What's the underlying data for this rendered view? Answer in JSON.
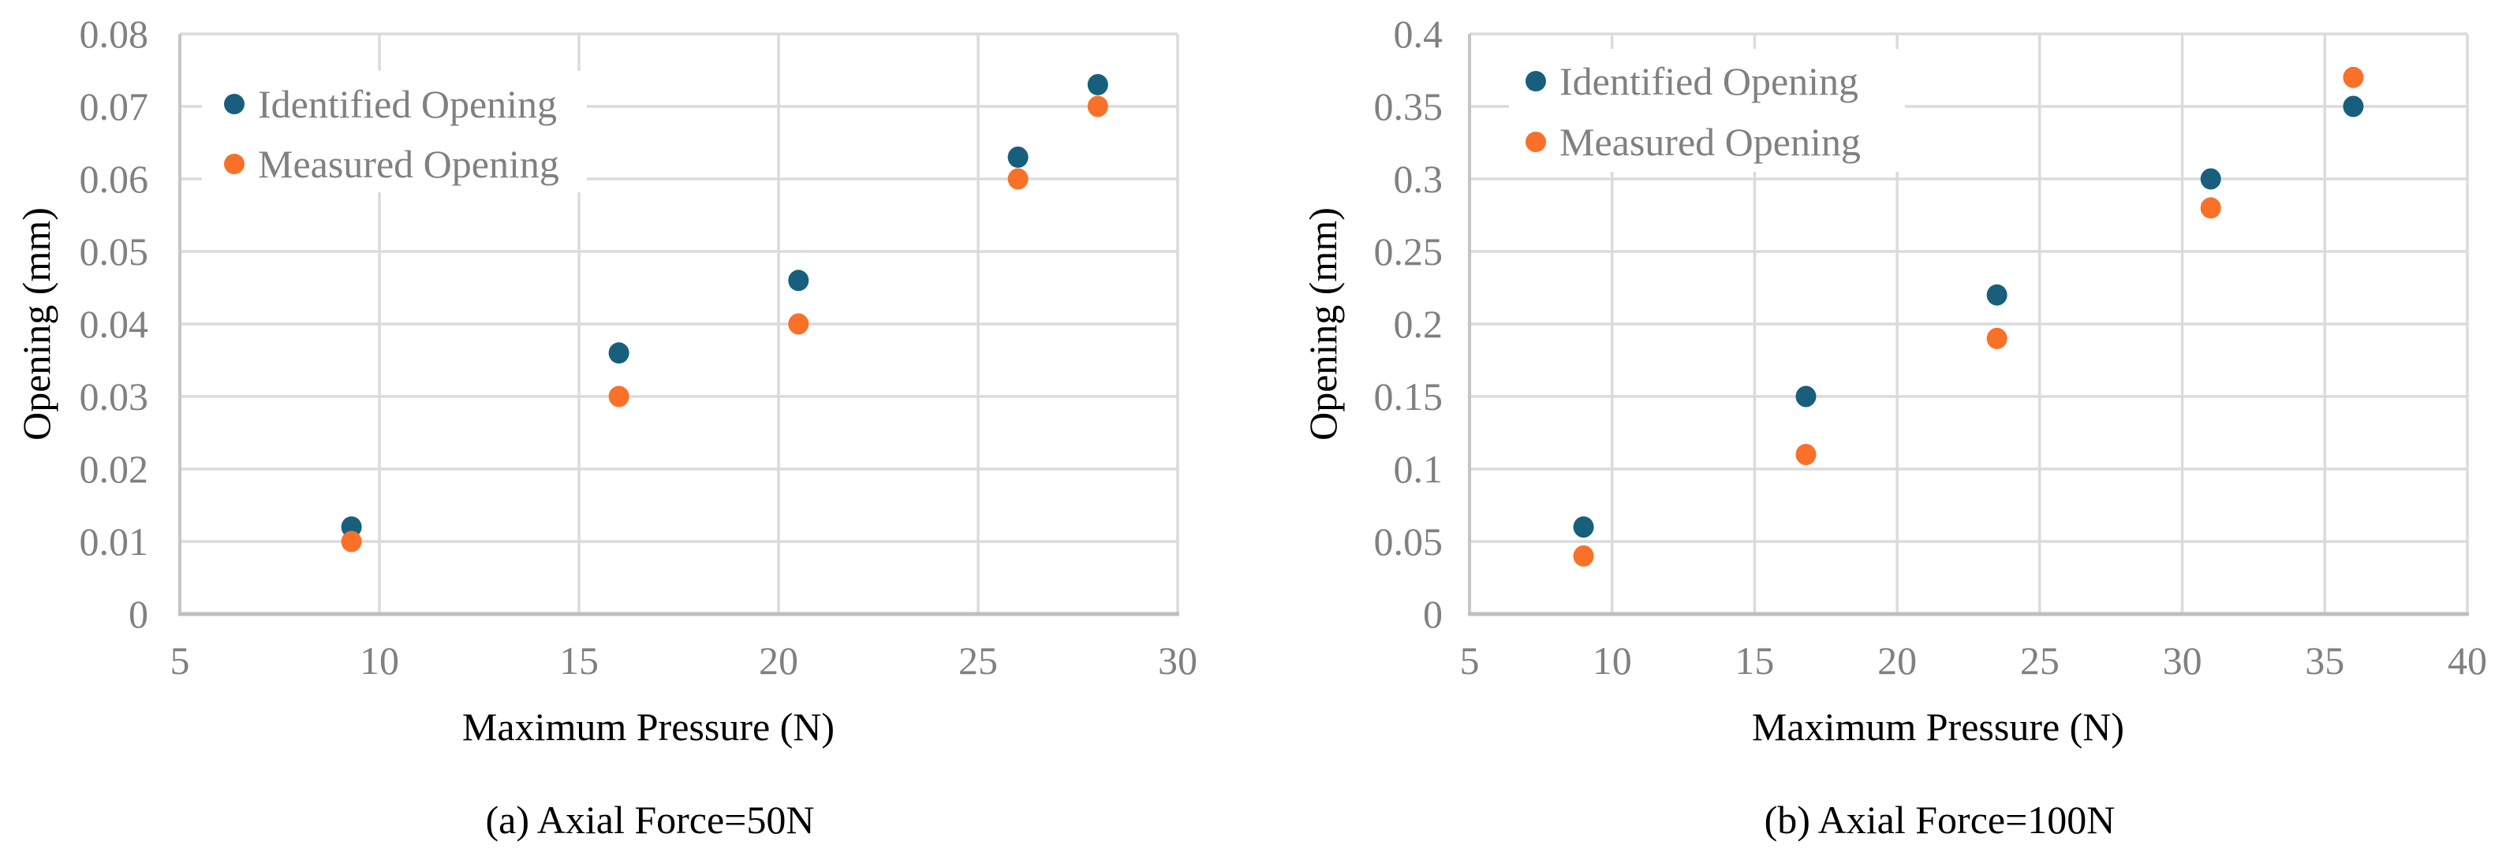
{
  "figure": {
    "background": "#FFFFFF"
  },
  "styles": {
    "grid_color": "#DBDBDB",
    "x_axis_line_color": "#BFBFBF",
    "y_axis_line_color": "#C6C6C6",
    "tick_label_color": "#808080",
    "legend_text_color": "#808080",
    "title_color": "#000000",
    "identified_color": "#175F7D",
    "measured_color": "#F97029"
  },
  "chart_data": [
    {
      "type": "scatter",
      "caption": "(a) Axial Force=50N",
      "xlabel": "Maximum Pressure (N)",
      "ylabel": "Opening (mm)",
      "xlim": [
        5,
        30
      ],
      "ylim": [
        0,
        0.08
      ],
      "xtick_values": [
        5,
        10,
        15,
        20,
        25,
        30
      ],
      "xtick_labels": [
        "5",
        "10",
        "15",
        "20",
        "25",
        "30"
      ],
      "ytick_values": [
        0,
        0.01,
        0.02,
        0.03,
        0.04,
        0.05,
        0.06,
        0.07,
        0.08
      ],
      "ytick_labels": [
        "0",
        "0.01",
        "0.02",
        "0.03",
        "0.04",
        "0.05",
        "0.06",
        "0.07",
        "0.08"
      ],
      "grid": true,
      "legend_position": "top-left-inside",
      "series": [
        {
          "name": "Identified Opening",
          "color": "#175F7D",
          "x": [
            9.3,
            16,
            20.5,
            26,
            28
          ],
          "y": [
            0.012,
            0.036,
            0.046,
            0.063,
            0.073
          ]
        },
        {
          "name": "Measured Opening",
          "color": "#F97029",
          "x": [
            9.3,
            16,
            20.5,
            26,
            28
          ],
          "y": [
            0.01,
            0.03,
            0.04,
            0.06,
            0.07
          ]
        }
      ]
    },
    {
      "type": "scatter",
      "caption": "(b) Axial Force=100N",
      "xlabel": "Maximum Pressure (N)",
      "ylabel": "Opening (mm)",
      "xlim": [
        5,
        40
      ],
      "ylim": [
        0,
        0.4
      ],
      "xtick_values": [
        5,
        10,
        15,
        20,
        25,
        30,
        35,
        40
      ],
      "xtick_labels": [
        "5",
        "10",
        "15",
        "20",
        "25",
        "30",
        "35",
        "40"
      ],
      "ytick_values": [
        0,
        0.05,
        0.1,
        0.15,
        0.2,
        0.25,
        0.3,
        0.35,
        0.4
      ],
      "ytick_labels": [
        "0",
        "0.05",
        "0.1",
        "0.15",
        "0.2",
        "0.25",
        "0.3",
        "0.35",
        "0.4"
      ],
      "grid": true,
      "legend_position": "top-left-inside",
      "series": [
        {
          "name": "Identified Opening",
          "color": "#175F7D",
          "x": [
            9,
            16.8,
            23.5,
            31,
            36
          ],
          "y": [
            0.06,
            0.15,
            0.22,
            0.3,
            0.35
          ]
        },
        {
          "name": "Measured Opening",
          "color": "#F97029",
          "x": [
            9,
            16.8,
            23.5,
            31,
            36
          ],
          "y": [
            0.04,
            0.11,
            0.19,
            0.28,
            0.37
          ]
        }
      ]
    }
  ]
}
